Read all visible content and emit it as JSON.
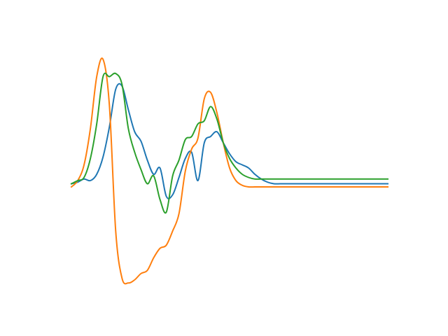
{
  "chart_data": {
    "type": "line",
    "grid": false,
    "axes_visible": false,
    "legend": "none",
    "x": [
      0,
      0.02,
      0.04,
      0.06,
      0.08,
      0.1,
      0.12,
      0.14,
      0.16,
      0.18,
      0.2,
      0.22,
      0.24,
      0.26,
      0.28,
      0.3,
      0.32,
      0.34,
      0.36,
      0.38,
      0.4,
      0.42,
      0.44,
      0.46,
      0.48,
      0.5,
      0.52,
      0.54,
      0.56,
      0.58,
      0.6,
      0.62,
      0.64,
      0.66,
      0.68,
      0.7,
      0.72,
      0.74,
      0.76,
      0.78,
      0.8,
      0.82,
      0.84,
      0.86,
      0.88,
      0.9,
      0.92,
      0.94,
      0.96,
      0.98,
      1.0
    ],
    "series": [
      {
        "color": "#1f77b4",
        "values": [
          0.0,
          0.01,
          0.03,
          0.02,
          0.06,
          0.17,
          0.36,
          0.6,
          0.62,
          0.47,
          0.33,
          0.27,
          0.15,
          0.06,
          0.1,
          -0.08,
          -0.07,
          0.04,
          0.16,
          0.2,
          0.02,
          0.26,
          0.3,
          0.33,
          0.26,
          0.19,
          0.14,
          0.12,
          0.1,
          0.06,
          0.03,
          0.01,
          0.0,
          0.0,
          0.0,
          0.0,
          0.0,
          0.0,
          0.0,
          0.0,
          0.0,
          0.0,
          0.0,
          0.0,
          0.0,
          0.0,
          0.0,
          0.0,
          0.0,
          0.0,
          0.0
        ]
      },
      {
        "color": "#ff7f0e",
        "values": [
          -0.02,
          0.02,
          0.12,
          0.35,
          0.68,
          0.79,
          0.5,
          -0.3,
          -0.6,
          -0.63,
          -0.61,
          -0.57,
          -0.55,
          -0.47,
          -0.41,
          -0.39,
          -0.3,
          -0.19,
          0.08,
          0.22,
          0.29,
          0.54,
          0.58,
          0.45,
          0.26,
          0.1,
          0.02,
          -0.01,
          -0.02,
          -0.02,
          -0.02,
          -0.02,
          -0.02,
          -0.02,
          -0.02,
          -0.02,
          -0.02,
          -0.02,
          -0.02,
          -0.02,
          -0.02,
          -0.02,
          -0.02,
          -0.02,
          -0.02,
          -0.02,
          -0.02,
          -0.02,
          -0.02,
          -0.02,
          -0.02
        ]
      },
      {
        "color": "#2ca02c",
        "values": [
          0.0,
          0.02,
          0.04,
          0.16,
          0.38,
          0.68,
          0.68,
          0.7,
          0.63,
          0.35,
          0.2,
          0.09,
          0.0,
          0.05,
          -0.1,
          -0.18,
          0.05,
          0.15,
          0.28,
          0.3,
          0.38,
          0.4,
          0.49,
          0.41,
          0.26,
          0.16,
          0.1,
          0.06,
          0.04,
          0.03,
          0.03,
          0.03,
          0.03,
          0.03,
          0.03,
          0.03,
          0.03,
          0.03,
          0.03,
          0.03,
          0.03,
          0.03,
          0.03,
          0.03,
          0.03,
          0.03,
          0.03,
          0.03,
          0.03,
          0.03,
          0.03
        ]
      }
    ],
    "xlim": [
      0,
      1
    ],
    "ylim": [
      -0.7,
      0.9
    ],
    "title": "",
    "xlabel": "",
    "ylabel": ""
  }
}
